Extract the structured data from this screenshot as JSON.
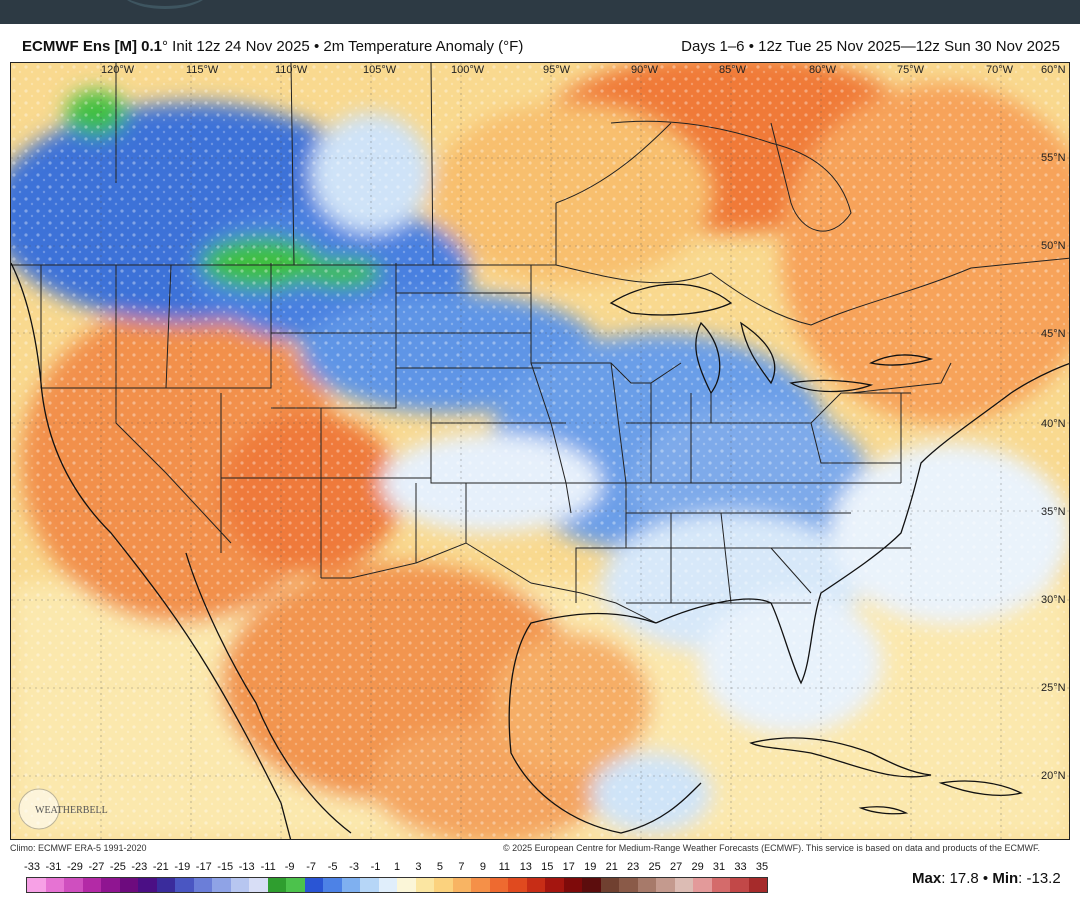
{
  "header": {
    "title_bold": "ECMWF Ens [M] 0.1",
    "title_rest": "° Init 12z 24 Nov 2025 • 2m Temperature Anomaly (°F)",
    "period": "Days 1–6 • 12z Tue 25 Nov 2025—12z Sun 30 Nov 2025"
  },
  "map": {
    "lon_labels": [
      "120°W",
      "115°W",
      "110°W",
      "105°W",
      "100°W",
      "95°W",
      "90°W",
      "85°W",
      "80°W",
      "75°W",
      "70°W"
    ],
    "lat_labels": [
      "60°N",
      "55°N",
      "50°N",
      "45°N",
      "40°N",
      "35°N",
      "30°N",
      "25°N",
      "20°N"
    ],
    "logo_text": "WEATHERBELL"
  },
  "footer": {
    "climo": "Climo: ECMWF ERA-5 1991-2020",
    "copyright": "© 2025 European Centre for Medium-Range Weather Forecasts (ECMWF). This service is based on data and products of the ECMWF.",
    "max_label": "Max",
    "max_value": "17.8",
    "min_label": "Min",
    "min_value": "-13.2"
  },
  "colorbar": {
    "labels": [
      "-33",
      "-31",
      "-29",
      "-27",
      "-25",
      "-23",
      "-21",
      "-19",
      "-17",
      "-15",
      "-13",
      "-11",
      "-9",
      "-7",
      "-5",
      "-3",
      "-1",
      "1",
      "3",
      "5",
      "7",
      "9",
      "11",
      "13",
      "15",
      "17",
      "19",
      "21",
      "23",
      "25",
      "27",
      "29",
      "31",
      "33",
      "35"
    ],
    "colors": [
      "#f7a1e6",
      "#e673d3",
      "#cf4fbf",
      "#b32aa6",
      "#8f1591",
      "#6d0b7e",
      "#4b0f85",
      "#3a2c9c",
      "#4a56c2",
      "#6b7ed8",
      "#8fa3e6",
      "#b7c6f0",
      "#d8def6",
      "#2f9e2f",
      "#4cc24c",
      "#2a55d4",
      "#4d82e6",
      "#7fb0f0",
      "#b6d6f7",
      "#e0eefb",
      "#fbf6d8",
      "#fbe6a2",
      "#fbd27e",
      "#f8b463",
      "#f59048",
      "#ee6a30",
      "#e04a1f",
      "#c72d16",
      "#a4150f",
      "#7e0a0a",
      "#5c0d0d",
      "#704030",
      "#8a5a48",
      "#a77a6a",
      "#c49a8e",
      "#dcbcb4",
      "#e39a9a",
      "#d46b6b",
      "#c24848",
      "#a62b2b"
    ]
  }
}
